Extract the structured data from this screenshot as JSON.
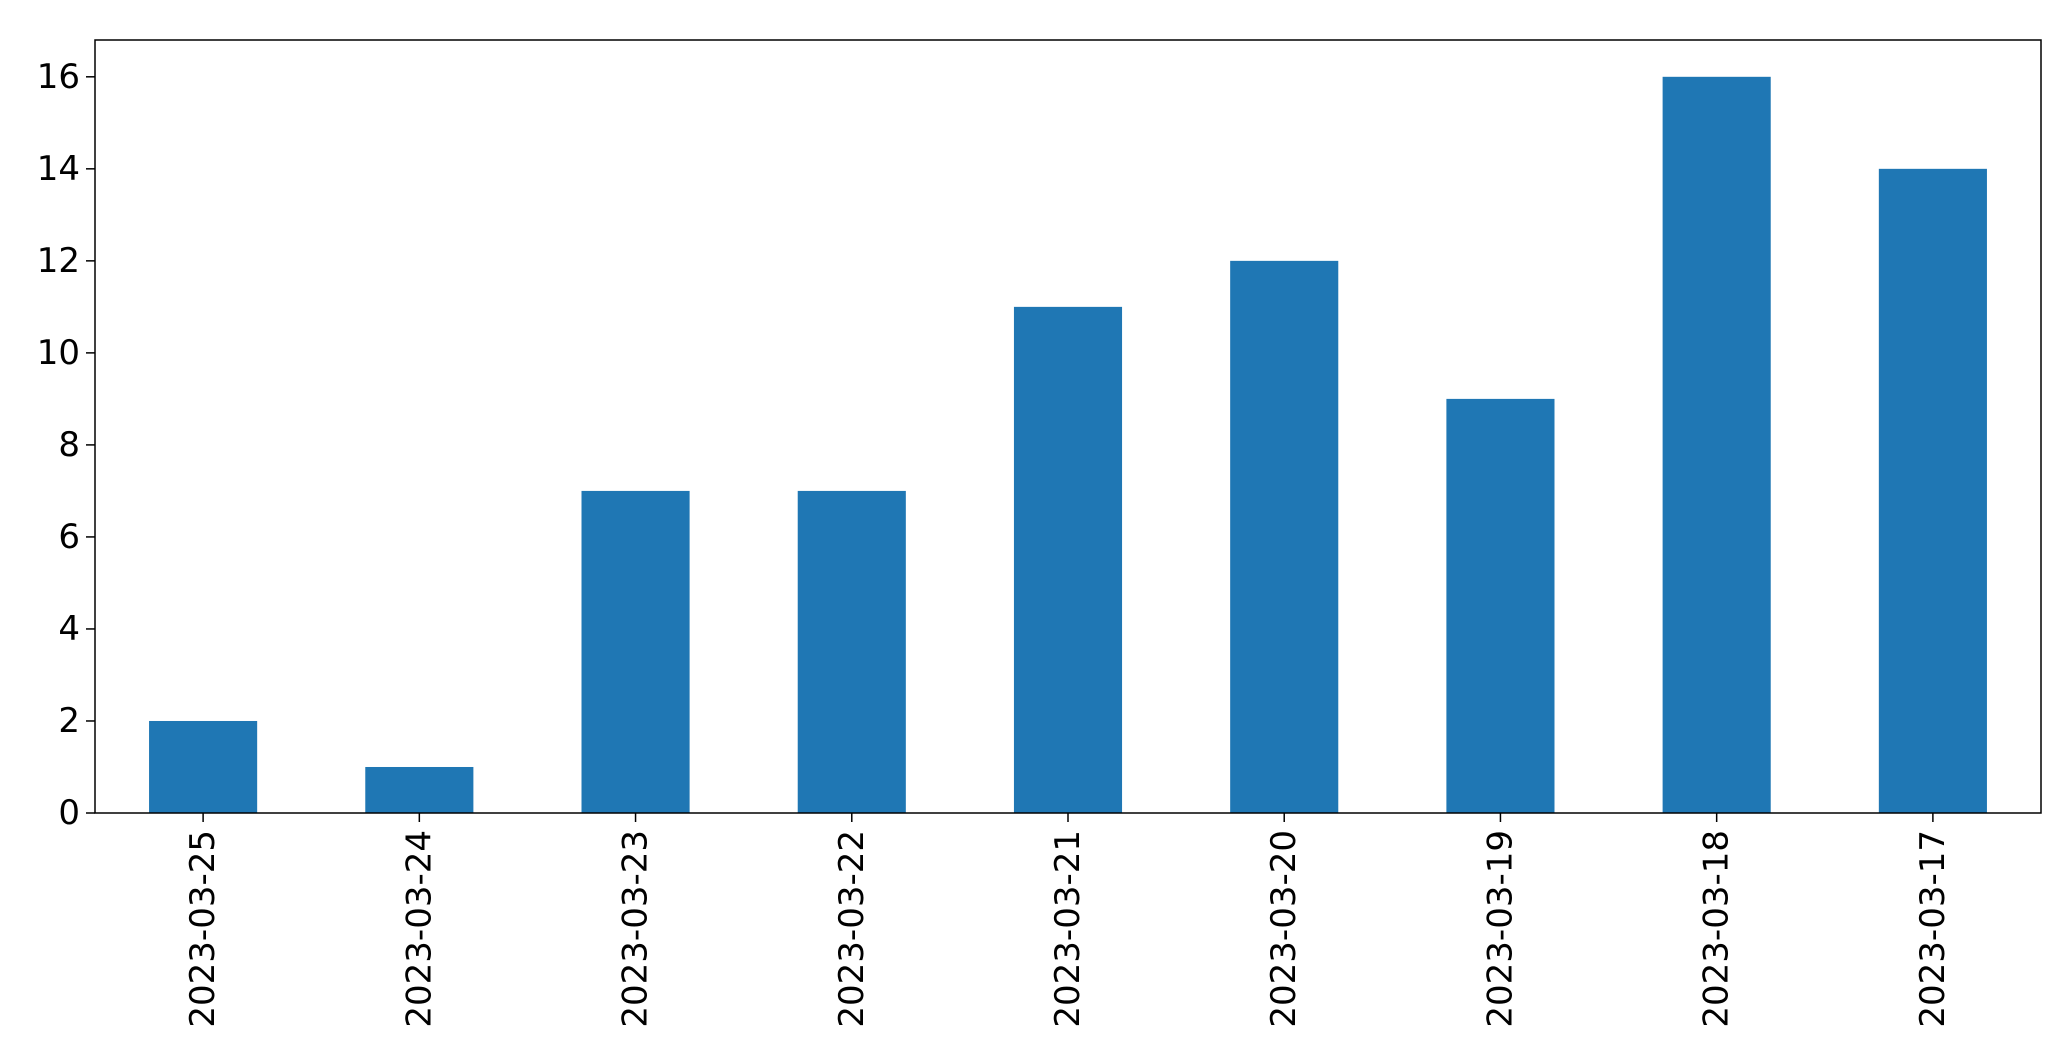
{
  "chart_data": {
    "type": "bar",
    "title": "",
    "xlabel": "",
    "ylabel": "",
    "categories": [
      "2023-03-25",
      "2023-03-24",
      "2023-03-23",
      "2023-03-22",
      "2023-03-21",
      "2023-03-20",
      "2023-03-19",
      "2023-03-18",
      "2023-03-17"
    ],
    "values": [
      2,
      1,
      7,
      7,
      11,
      12,
      9,
      16,
      14
    ],
    "ylim": [
      0,
      16.8
    ],
    "yticks": [
      0,
      2,
      4,
      6,
      8,
      10,
      12,
      14,
      16
    ],
    "grid": false,
    "legend": "none",
    "bar_color": "#1f77b4",
    "x_tick_rotation": "vertical"
  }
}
